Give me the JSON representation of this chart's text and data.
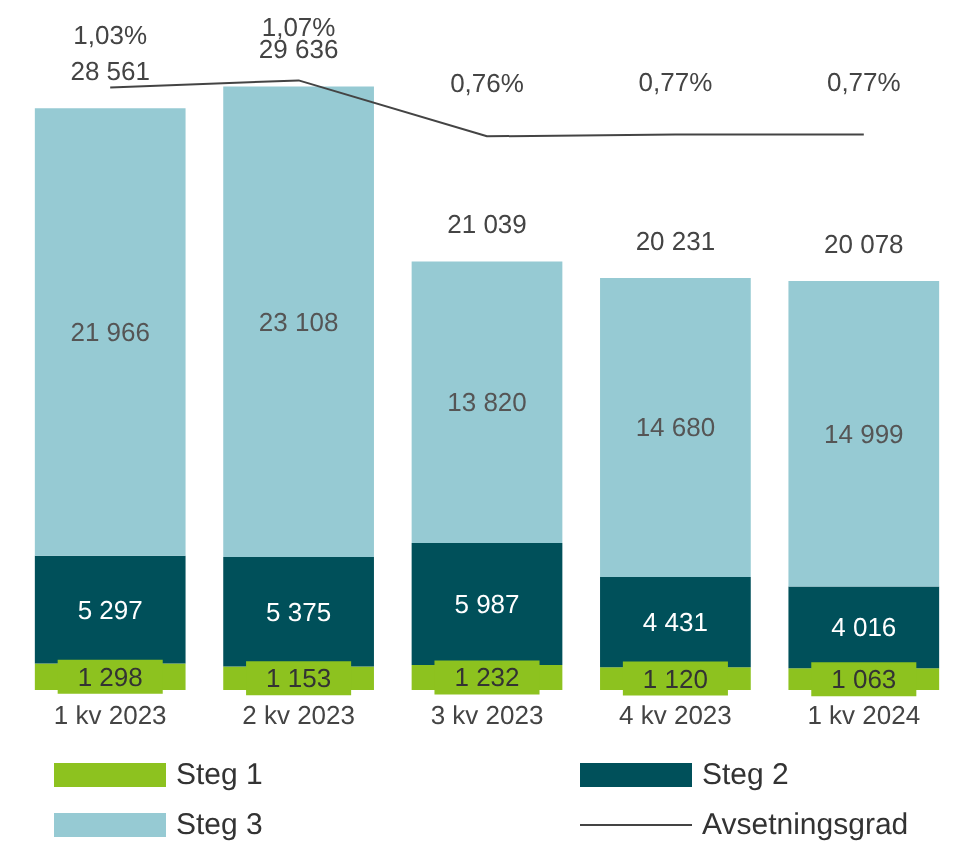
{
  "chart_data": {
    "type": "bar",
    "stacked": true,
    "categories": [
      "1 kv 2023",
      "2 kv 2023",
      "3 kv 2023",
      "4 kv 2023",
      "1 kv 2024"
    ],
    "series": [
      {
        "name": "Steg 1",
        "color": "#8dc21f",
        "values": [
          1298,
          1153,
          1232,
          1120,
          1063
        ],
        "value_labels": [
          "1 298",
          "1 153",
          "1 232",
          "1 120",
          "1 063"
        ]
      },
      {
        "name": "Steg 2",
        "color": "#00505a",
        "values": [
          5297,
          5375,
          5987,
          4431,
          4016
        ],
        "value_labels": [
          "5 297",
          "5 375",
          "5 987",
          "4 431",
          "4 016"
        ]
      },
      {
        "name": "Steg 3",
        "color": "#96cad3",
        "values": [
          21966,
          23108,
          13820,
          14680,
          14999
        ],
        "value_labels": [
          "21 966",
          "23 108",
          "13 820",
          "14 680",
          "14 999"
        ]
      },
      {
        "name": "Avsetningsgrad",
        "type": "line",
        "axis": "y2",
        "color": "#444444",
        "values": [
          1.03,
          1.07,
          0.76,
          0.77,
          0.77
        ],
        "value_labels": [
          "1,03%",
          "1,07%",
          "0,76%",
          "0,77%",
          "0,77%"
        ]
      }
    ],
    "totals": [
      "28 561",
      "29 636",
      "21 039",
      "20 231",
      "20 078"
    ],
    "legend": "bottom",
    "marker": "none"
  }
}
